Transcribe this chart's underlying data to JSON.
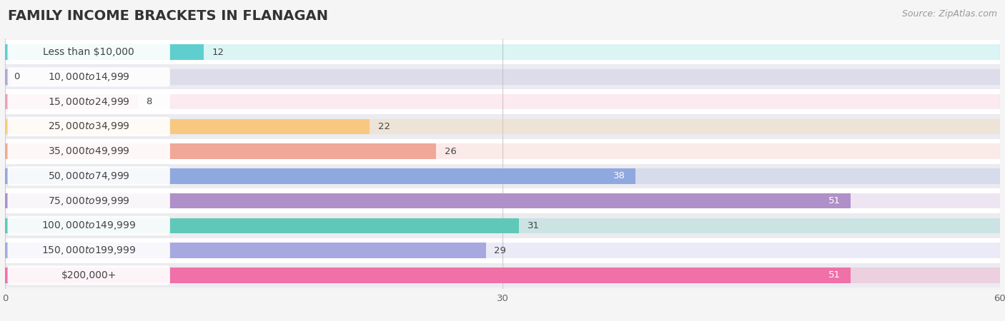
{
  "title": "FAMILY INCOME BRACKETS IN FLANAGAN",
  "source": "Source: ZipAtlas.com",
  "categories": [
    "Less than $10,000",
    "$10,000 to $14,999",
    "$15,000 to $24,999",
    "$25,000 to $34,999",
    "$35,000 to $49,999",
    "$50,000 to $74,999",
    "$75,000 to $99,999",
    "$100,000 to $149,999",
    "$150,000 to $199,999",
    "$200,000+"
  ],
  "values": [
    12,
    0,
    8,
    22,
    26,
    38,
    51,
    31,
    29,
    51
  ],
  "bar_colors": [
    "#5ecece",
    "#a8a8d8",
    "#f0a0b8",
    "#f8c880",
    "#f0a898",
    "#90a8e0",
    "#b090c8",
    "#60c8b8",
    "#a8a8e0",
    "#f070a8"
  ],
  "label_colors": [
    "#333333",
    "#333333",
    "#333333",
    "#333333",
    "#333333",
    "white",
    "white",
    "#333333",
    "#333333",
    "white"
  ],
  "xlim": [
    0,
    60
  ],
  "xticks": [
    0,
    30,
    60
  ],
  "bg_color": "#f5f5f5",
  "row_bg_even": "#ffffff",
  "row_bg_odd": "#ebebf0",
  "title_fontsize": 14,
  "source_fontsize": 9,
  "label_fontsize": 10,
  "value_fontsize": 9.5,
  "bar_height": 0.62
}
